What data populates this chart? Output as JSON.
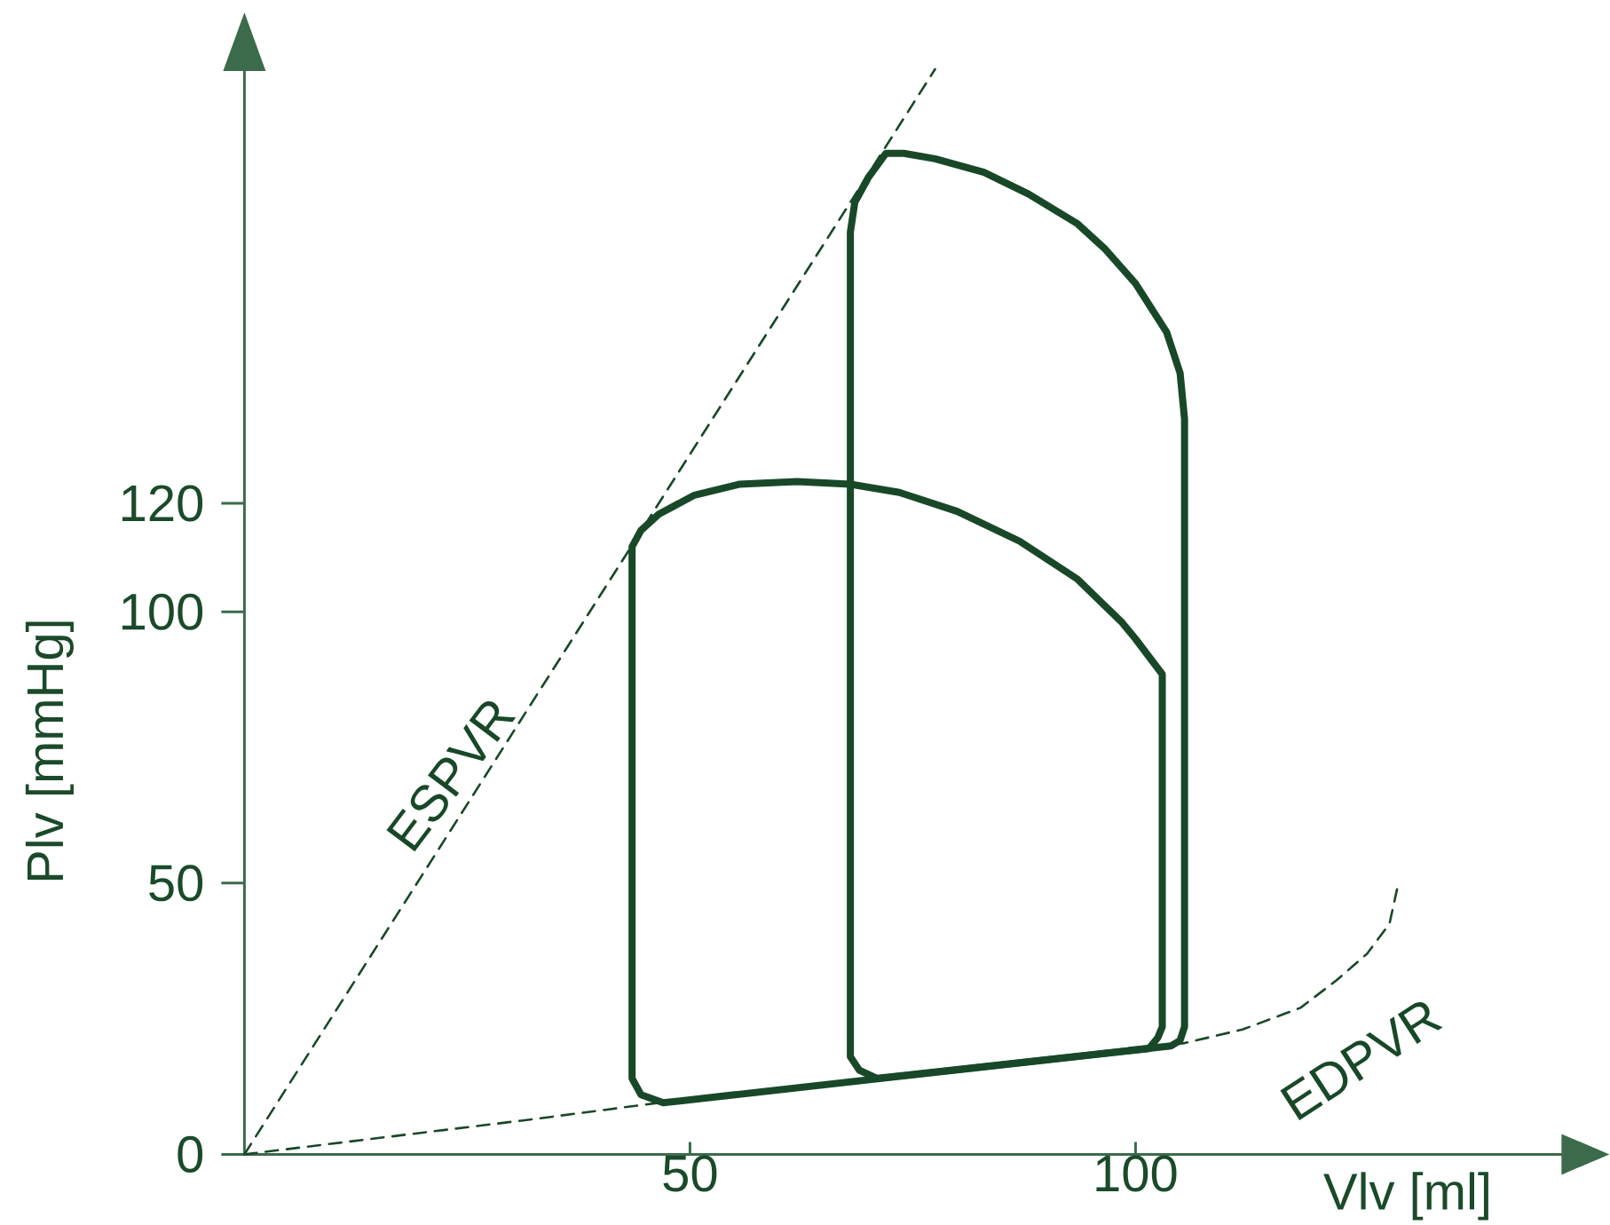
{
  "chart_data": {
    "type": "line",
    "xlabel": "Vlv [ml]",
    "ylabel": "Plv [mmHg]",
    "xlim": [
      0,
      148
    ],
    "ylim": [
      0,
      200
    ],
    "xticks": [
      50,
      100
    ],
    "yticks": [
      0,
      50,
      100,
      120
    ],
    "marker": "none",
    "series": [
      {
        "name": "ESPVR",
        "color": "#184828",
        "line_style": "dashed",
        "x": [
          0,
          77.5
        ],
        "values": [
          0,
          200
        ]
      },
      {
        "name": "EDPVR",
        "color": "#184828",
        "line_style": "dashed",
        "x": [
          0,
          32.5,
          46.5,
          68,
          92,
          105.5,
          112,
          118.5,
          122.5,
          126,
          128.5,
          129.5
        ],
        "values": [
          0,
          6.5,
          9.5,
          13.5,
          18,
          20.5,
          23,
          27,
          32,
          37,
          42.5,
          50
        ]
      },
      {
        "color": "#184828",
        "line_style": "solid",
        "x": [
          47,
          101.5,
          102.5,
          103,
          103,
          100,
          98.5,
          93.5,
          87,
          80,
          73.5,
          68,
          62,
          55.5,
          50.5,
          46.5,
          44.5,
          43.5,
          43.5,
          44.5,
          47,
          55
        ],
        "values": [
          9.5,
          19.5,
          21.5,
          23.5,
          88.5,
          95,
          98,
          106,
          113,
          118.5,
          122,
          123.5,
          124,
          123.5,
          121.5,
          118,
          115,
          112,
          14,
          11,
          9.5,
          11
        ]
      },
      {
        "color": "#184828",
        "line_style": "solid",
        "x": [
          71,
          104,
          105,
          105.5,
          105.5,
          105,
          103.5,
          100,
          96.5,
          93.5,
          88,
          83,
          77.5,
          74,
          72,
          70,
          68.5,
          68,
          68,
          69,
          71,
          76.5
        ],
        "values": [
          14,
          20,
          21,
          23.5,
          135.5,
          144,
          151.5,
          160.5,
          167,
          171.5,
          177,
          181,
          183.5,
          184.5,
          184.5,
          180,
          175.5,
          170,
          18,
          15.5,
          14,
          15
        ]
      }
    ]
  }
}
